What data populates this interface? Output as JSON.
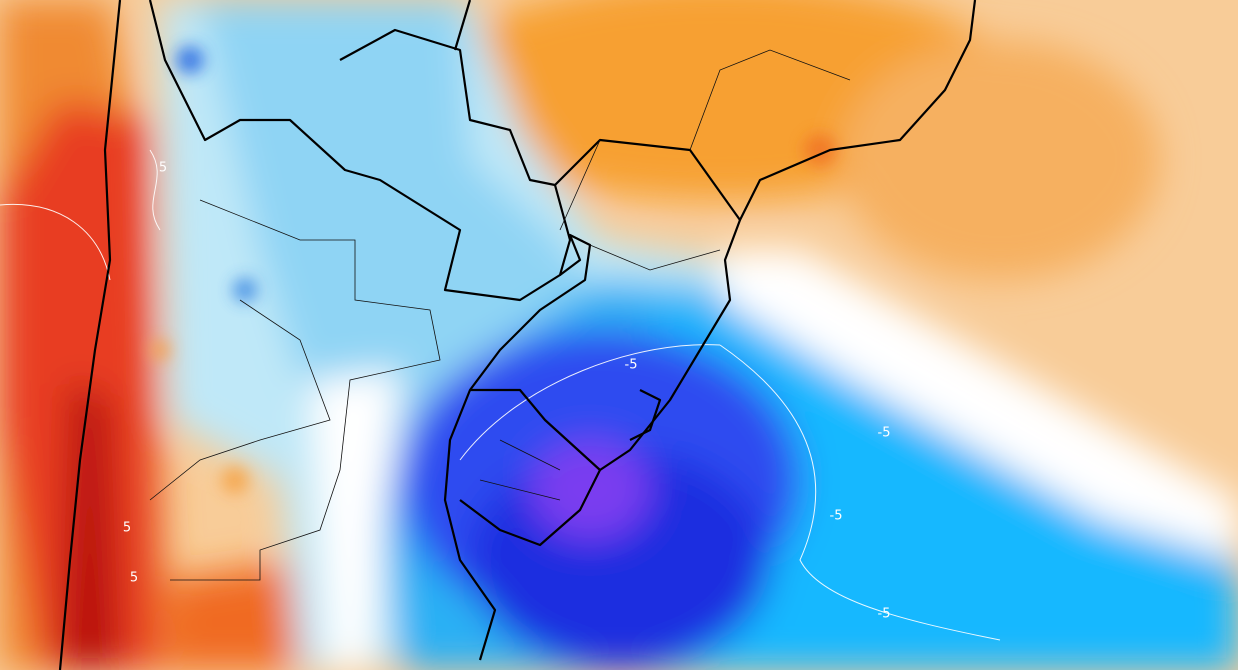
{
  "contour_labels": [
    "5",
    "5",
    "5",
    "-5",
    "-5",
    "-5",
    "-5"
  ]
}
